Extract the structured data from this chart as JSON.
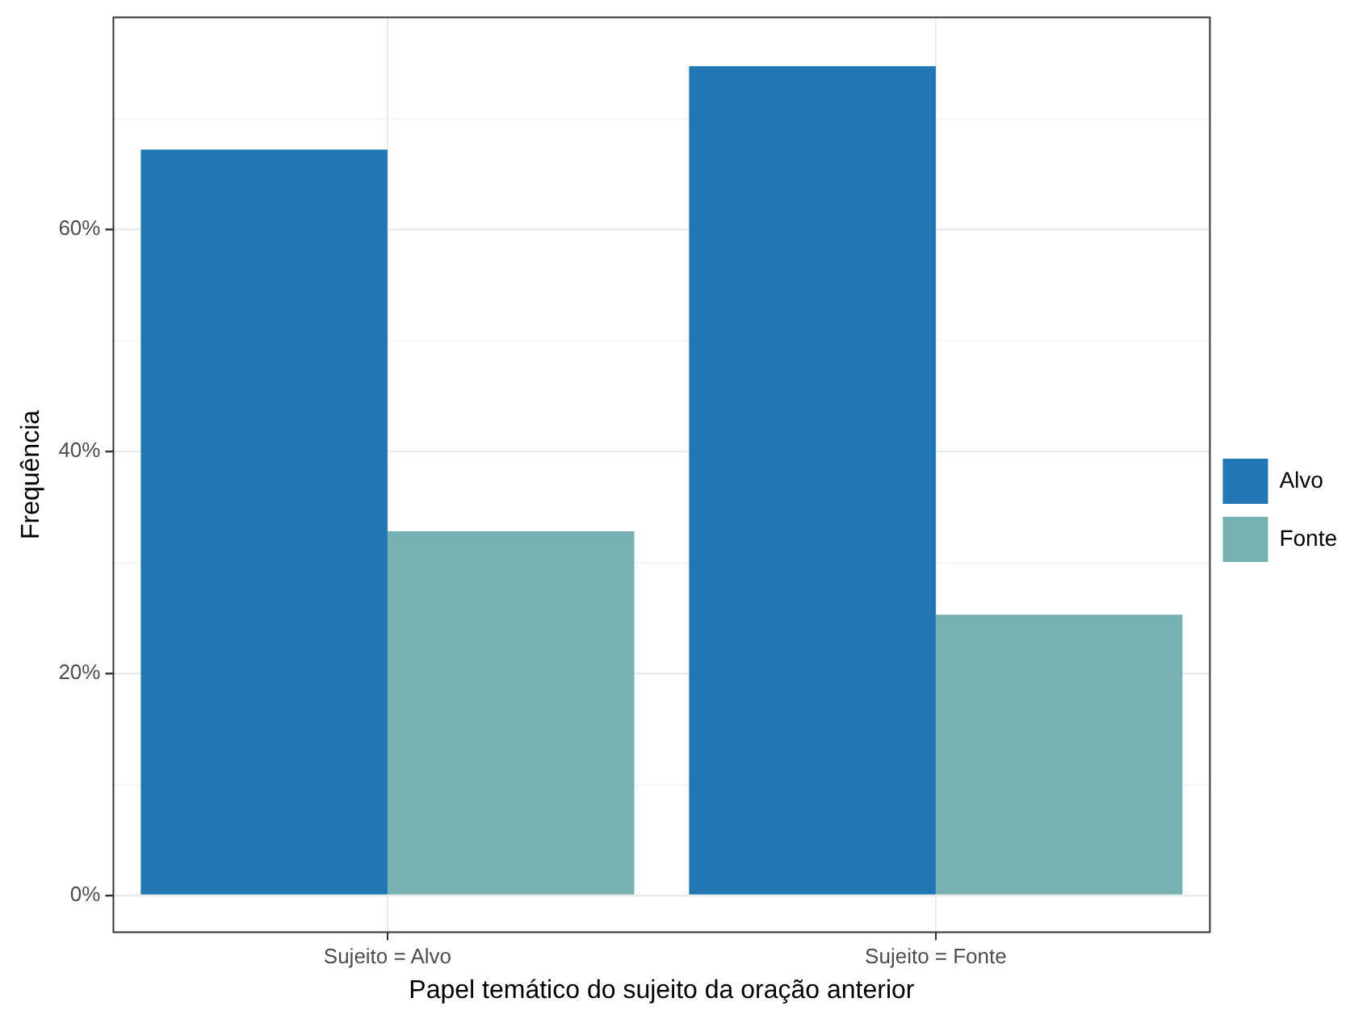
{
  "chart_data": {
    "type": "bar",
    "xlabel": "Papel temático do sujeito da oração anterior",
    "ylabel": "Frequência",
    "categories": [
      "Sujeito = Alvo",
      "Sujeito = Fonte"
    ],
    "series": [
      {
        "name": "Alvo",
        "color": "#2077b4",
        "values": [
          67.2,
          74.7
        ]
      },
      {
        "name": "Fonte",
        "color": "#76b0b0",
        "values": [
          32.8,
          25.3
        ]
      }
    ],
    "ylim": [
      -3.3,
      79.1
    ],
    "yticks": [
      {
        "value": 0,
        "label": "0%"
      },
      {
        "value": 10,
        "label": null
      },
      {
        "value": 20,
        "label": "20%"
      },
      {
        "value": 30,
        "label": null
      },
      {
        "value": 40,
        "label": "40%"
      },
      {
        "value": 50,
        "label": null
      },
      {
        "value": 60,
        "label": "60%"
      },
      {
        "value": 70,
        "label": null
      }
    ],
    "grid": true,
    "legend": "right"
  }
}
